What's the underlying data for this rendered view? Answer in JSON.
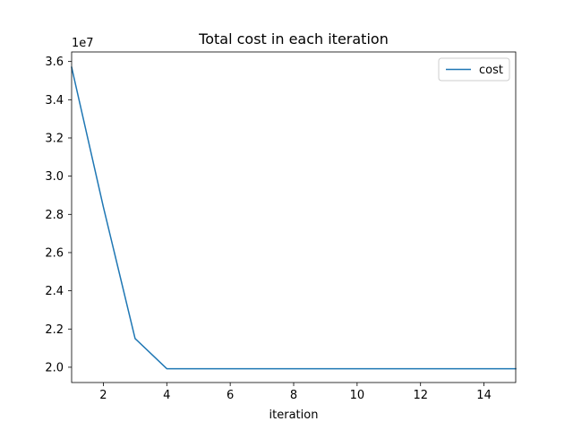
{
  "chart_data": {
    "type": "line",
    "title": "Total cost in each iteration",
    "xlabel": "iteration",
    "ylabel": "",
    "y_offset_label": "1e7",
    "xlim": [
      1,
      15
    ],
    "ylim": [
      19200000,
      36500000
    ],
    "x_ticks": [
      2,
      4,
      6,
      8,
      10,
      12,
      14
    ],
    "y_ticks": [
      20000000,
      22000000,
      24000000,
      26000000,
      28000000,
      30000000,
      32000000,
      34000000,
      36000000
    ],
    "y_tick_labels": [
      "2.0",
      "2.2",
      "2.4",
      "2.6",
      "2.8",
      "3.0",
      "3.2",
      "3.4",
      "3.6"
    ],
    "grid": false,
    "legend_position": "top-right",
    "series": [
      {
        "name": "cost",
        "color": "#1f77b4",
        "x": [
          1,
          2,
          3,
          4,
          5,
          6,
          7,
          8,
          9,
          10,
          11,
          12,
          13,
          14,
          15
        ],
        "y": [
          35700000,
          28400000,
          21500000,
          19920000,
          19920000,
          19920000,
          19920000,
          19920000,
          19920000,
          19920000,
          19920000,
          19920000,
          19920000,
          19920000,
          19920000
        ]
      }
    ]
  }
}
